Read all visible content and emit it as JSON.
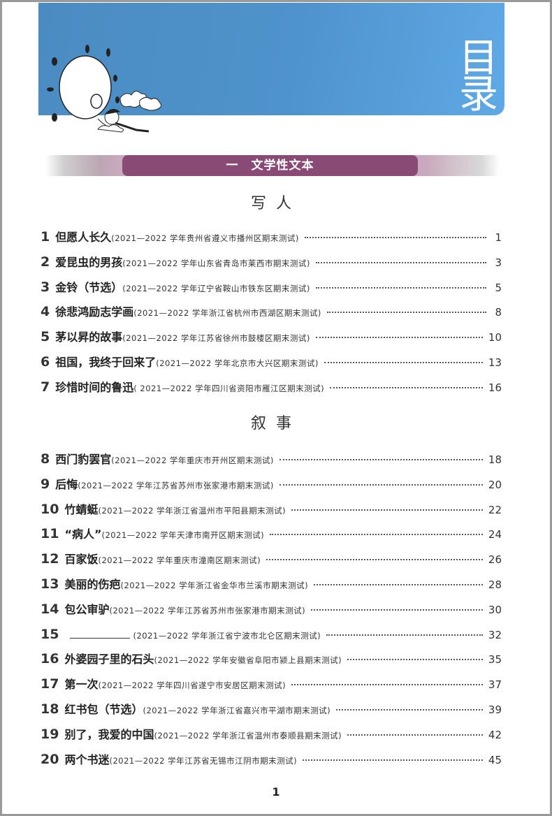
{
  "header": {
    "title": "目录",
    "color": "#4f93cc"
  },
  "section": {
    "label": "一　文学性文本",
    "color": "#8a4a76"
  },
  "groups": [
    {
      "heading": "写人",
      "items": [
        {
          "num": "1",
          "title": "但愿人长久",
          "source": "(2021—2022 学年贵州省遵义市播州区期末测试)",
          "page": "1"
        },
        {
          "num": "2",
          "title": "爱昆虫的男孩",
          "source": "(2021—2022 学年山东省青岛市莱西市期末测试)",
          "page": "3"
        },
        {
          "num": "3",
          "title": "金铃（节选）",
          "source": "(2021—2022 学年辽宁省鞍山市铁东区期末测试)",
          "page": "5"
        },
        {
          "num": "4",
          "title": "徐悲鸿励志学画",
          "source": "(2021—2022 学年浙江省杭州市西湖区期末测试)",
          "page": "8"
        },
        {
          "num": "5",
          "title": "茅以昇的故事",
          "source": "(2021—2022 学年江苏省徐州市鼓楼区期末测试)",
          "page": "10"
        },
        {
          "num": "6",
          "title": "祖国，我终于回来了",
          "source": "(2021—2022 学年北京市大兴区期末测试)",
          "page": "13"
        },
        {
          "num": "7",
          "title": "珍惜时间的鲁迅",
          "source": "( 2021—2022 学年四川省资阳市雁江区期末测试)",
          "page": "16"
        }
      ]
    },
    {
      "heading": "叙事",
      "items": [
        {
          "num": "8",
          "title": "西门豹罢官",
          "source": "(2021—2022 学年重庆市开州区期末测试)",
          "page": "18"
        },
        {
          "num": "9",
          "title": "后悔",
          "source": "(2021—2022 学年江苏省苏州市张家港市期末测试)",
          "page": "20"
        },
        {
          "num": "10",
          "title": "竹蜻蜓",
          "source": "(2021—2022 学年浙江省温州市平阳县期末测试)",
          "page": "22"
        },
        {
          "num": "11",
          "title": "“病人”",
          "source": "(2021—2022 学年天津市南开区期末测试)",
          "page": "24"
        },
        {
          "num": "12",
          "title": "百家饭",
          "source": "(2021—2022 学年重庆市潼南区期末测试)",
          "page": "26"
        },
        {
          "num": "13",
          "title": "美丽的伤疤",
          "source": "(2021—2022 学年浙江省金华市兰溪市期末测试)",
          "page": "28"
        },
        {
          "num": "14",
          "title": "包公审驴",
          "source": "(2021—2022 学年江苏省苏州市张家港市期末测试)",
          "page": "30"
        },
        {
          "num": "15",
          "title": "",
          "blank": true,
          "source": "(2021—2022 学年浙江省宁波市北仑区期末测试)",
          "page": "32"
        },
        {
          "num": "16",
          "title": "外婆园子里的石头",
          "source": "(2021—2022 学年安徽省阜阳市颍上县期末测试)",
          "page": "35"
        },
        {
          "num": "17",
          "title": "第一次",
          "source": "(2021—2022 学年四川省遂宁市安居区期末测试)",
          "page": "37"
        },
        {
          "num": "18",
          "title": "红书包（节选）",
          "source": "(2021—2022 学年浙江省嘉兴市平湖市期末测试)",
          "page": "39"
        },
        {
          "num": "19",
          "title": "别了，我爱的中国",
          "source": "(2021—2022 学年浙江省温州市泰顺县期末测试)",
          "page": "42"
        },
        {
          "num": "20",
          "title": "两个书迷",
          "source": "(2021—2022 学年江苏省无锡市江阴市期末测试)",
          "page": "45"
        }
      ]
    }
  ],
  "footer": {
    "page_number": "1"
  }
}
